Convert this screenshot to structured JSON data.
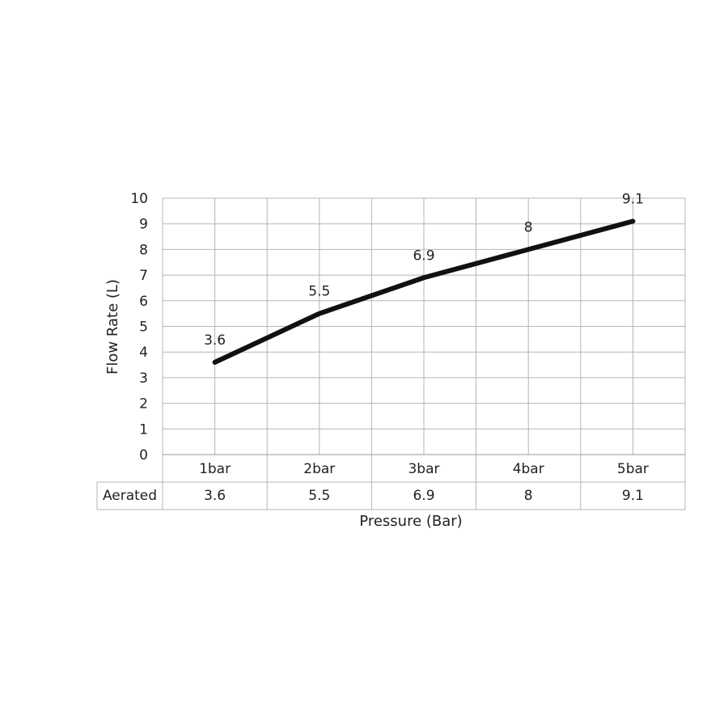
{
  "chart_data": {
    "type": "line",
    "title": "",
    "xlabel": "Pressure (Bar)",
    "ylabel": "Flow Rate (L)",
    "categories": [
      "1bar",
      "2bar",
      "3bar",
      "4bar",
      "5bar"
    ],
    "series": [
      {
        "name": "Aerated",
        "values": [
          3.6,
          5.5,
          6.9,
          8,
          9.1
        ],
        "color": "#111111"
      }
    ],
    "data_labels": [
      "3.6",
      "5.5",
      "6.9",
      "8",
      "9.1"
    ],
    "ylim": [
      0,
      10
    ],
    "yticks": [
      "0",
      "1",
      "2",
      "3",
      "4",
      "5",
      "6",
      "7",
      "8",
      "9",
      "10"
    ],
    "grid": true,
    "data_table": true,
    "grid_color": "#b5b5b5"
  }
}
